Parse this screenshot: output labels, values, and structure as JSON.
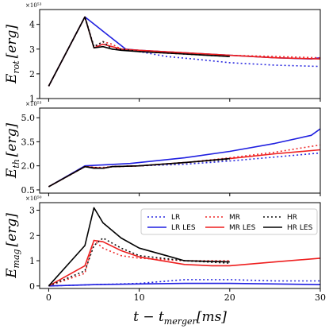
{
  "chart_data": {
    "type": "line",
    "xlabel": "t − t_merger [ms]",
    "xlim": [
      -1,
      30
    ],
    "xticks": [
      0,
      10,
      20,
      30
    ],
    "styles": {
      "LR": {
        "color": "#2a2ae0",
        "dash": "2,3"
      },
      "LR LES": {
        "color": "#1f1fe0",
        "dash": ""
      },
      "MR": {
        "color": "#ee2a2a",
        "dash": "2,3"
      },
      "MR LES": {
        "color": "#ee1f1f",
        "dash": ""
      },
      "HR": {
        "color": "#111111",
        "dash": "2,3"
      },
      "HR LES": {
        "color": "#000000",
        "dash": ""
      }
    },
    "legend": {
      "placement": "upper-right",
      "panel": 2,
      "entries": [
        "LR",
        "MR",
        "HR",
        "LR LES",
        "MR LES",
        "HR LES"
      ]
    },
    "panels": [
      {
        "ylabel": "E_rot [erg]",
        "ylabel_main": "E",
        "ylabel_sub": "rot",
        "ylabel_rest": "[erg]",
        "exponent": "×10⁵³",
        "ylim": [
          1.0,
          4.6
        ],
        "yticks": [
          1,
          2,
          3,
          4
        ],
        "yticklabels": [
          "1",
          "2",
          "3",
          "4"
        ],
        "series": [
          {
            "name": "LR",
            "points": [
              [
                0,
                1.5
              ],
              [
                4,
                4.3
              ],
              [
                5,
                3.1
              ],
              [
                6,
                3.2
              ],
              [
                7,
                3.1
              ],
              [
                8,
                3.0
              ],
              [
                10,
                2.9
              ],
              [
                13,
                2.7
              ],
              [
                16,
                2.6
              ],
              [
                20,
                2.45
              ],
              [
                25,
                2.35
              ],
              [
                30,
                2.3
              ]
            ]
          },
          {
            "name": "LR LES",
            "points": [
              [
                0,
                1.5
              ],
              [
                4,
                4.3
              ],
              [
                8.5,
                3.0
              ],
              [
                10,
                2.95
              ],
              [
                15,
                2.85
              ],
              [
                20,
                2.75
              ],
              [
                25,
                2.65
              ],
              [
                29,
                2.6
              ],
              [
                30,
                2.65
              ]
            ]
          },
          {
            "name": "MR",
            "points": [
              [
                0,
                1.5
              ],
              [
                4,
                4.3
              ],
              [
                5,
                3.1
              ],
              [
                6,
                3.3
              ],
              [
                7,
                3.2
              ],
              [
                8,
                3.0
              ],
              [
                10,
                2.95
              ],
              [
                15,
                2.85
              ],
              [
                20,
                2.75
              ],
              [
                25,
                2.7
              ],
              [
                30,
                2.65
              ]
            ]
          },
          {
            "name": "MR LES",
            "points": [
              [
                0,
                1.5
              ],
              [
                4,
                4.3
              ],
              [
                5,
                3.05
              ],
              [
                6,
                3.2
              ],
              [
                7,
                3.1
              ],
              [
                8,
                3.0
              ],
              [
                10,
                2.95
              ],
              [
                15,
                2.85
              ],
              [
                20,
                2.75
              ],
              [
                25,
                2.65
              ],
              [
                30,
                2.6
              ]
            ]
          },
          {
            "name": "HR",
            "points": [
              [
                0,
                1.5
              ],
              [
                4,
                4.3
              ],
              [
                5,
                3.1
              ],
              [
                6,
                3.3
              ],
              [
                7,
                3.0
              ],
              [
                8,
                3.0
              ],
              [
                10,
                2.9
              ],
              [
                15,
                2.8
              ],
              [
                20,
                2.7
              ]
            ]
          },
          {
            "name": "HR LES",
            "points": [
              [
                0,
                1.5
              ],
              [
                4,
                4.3
              ],
              [
                5,
                3.05
              ],
              [
                6,
                3.1
              ],
              [
                7,
                3.0
              ],
              [
                8,
                2.95
              ],
              [
                10,
                2.9
              ],
              [
                15,
                2.8
              ],
              [
                20,
                2.7
              ]
            ]
          }
        ]
      },
      {
        "ylabel": "E_th [erg]",
        "ylabel_main": "E",
        "ylabel_sub": "th",
        "ylabel_rest": "[erg]",
        "exponent": "×10⁵³",
        "ylim": [
          0.3,
          5.6
        ],
        "yticks": [
          0.5,
          2.0,
          3.5,
          5.0
        ],
        "yticklabels": [
          "0.5",
          "2.0",
          "3.5",
          "5.0"
        ],
        "series": [
          {
            "name": "LR",
            "points": [
              [
                0,
                0.7
              ],
              [
                4,
                1.95
              ],
              [
                5,
                1.9
              ],
              [
                6,
                1.85
              ],
              [
                7,
                1.95
              ],
              [
                10,
                2.0
              ],
              [
                15,
                2.1
              ],
              [
                20,
                2.3
              ],
              [
                25,
                2.55
              ],
              [
                30,
                2.8
              ]
            ]
          },
          {
            "name": "LR LES",
            "points": [
              [
                0,
                0.7
              ],
              [
                4,
                2.0
              ],
              [
                9,
                2.15
              ],
              [
                15,
                2.5
              ],
              [
                20,
                2.9
              ],
              [
                25,
                3.4
              ],
              [
                29,
                3.9
              ],
              [
                30,
                4.3
              ]
            ]
          },
          {
            "name": "MR",
            "points": [
              [
                0,
                0.7
              ],
              [
                4,
                1.95
              ],
              [
                5,
                1.9
              ],
              [
                6,
                1.9
              ],
              [
                7,
                1.95
              ],
              [
                10,
                2.0
              ],
              [
                15,
                2.2
              ],
              [
                20,
                2.5
              ],
              [
                25,
                2.85
              ],
              [
                30,
                3.3
              ]
            ]
          },
          {
            "name": "MR LES",
            "points": [
              [
                0,
                0.7
              ],
              [
                4,
                1.95
              ],
              [
                5,
                1.9
              ],
              [
                6,
                1.85
              ],
              [
                7,
                1.95
              ],
              [
                10,
                2.0
              ],
              [
                15,
                2.2
              ],
              [
                20,
                2.45
              ],
              [
                25,
                2.75
              ],
              [
                30,
                3.0
              ]
            ]
          },
          {
            "name": "HR",
            "points": [
              [
                0,
                0.7
              ],
              [
                4,
                1.95
              ],
              [
                5,
                1.9
              ],
              [
                6,
                1.85
              ],
              [
                7,
                1.95
              ],
              [
                10,
                2.0
              ],
              [
                15,
                2.2
              ],
              [
                20,
                2.4
              ]
            ]
          },
          {
            "name": "HR LES",
            "points": [
              [
                0,
                0.7
              ],
              [
                4,
                1.95
              ],
              [
                5,
                1.85
              ],
              [
                6,
                1.85
              ],
              [
                7,
                1.95
              ],
              [
                10,
                2.0
              ],
              [
                15,
                2.2
              ],
              [
                20,
                2.45
              ]
            ]
          }
        ]
      },
      {
        "ylabel": "E_mag [erg]",
        "ylabel_main": "E",
        "ylabel_sub": "mag",
        "ylabel_rest": "[erg]",
        "exponent": "×10⁵⁰",
        "ylim": [
          -0.1,
          3.3
        ],
        "yticks": [
          0,
          1,
          2,
          3
        ],
        "yticklabels": [
          "0",
          "1",
          "2",
          "3"
        ],
        "series": [
          {
            "name": "LR",
            "points": [
              [
                0,
                0
              ],
              [
                5,
                0.05
              ],
              [
                10,
                0.1
              ],
              [
                15,
                0.25
              ],
              [
                20,
                0.25
              ],
              [
                25,
                0.2
              ],
              [
                30,
                0.2
              ]
            ]
          },
          {
            "name": "LR LES",
            "points": [
              [
                0,
                0
              ],
              [
                5,
                0.05
              ],
              [
                10,
                0.08
              ],
              [
                15,
                0.1
              ],
              [
                20,
                0.1
              ],
              [
                25,
                0.08
              ],
              [
                30,
                0.05
              ]
            ]
          },
          {
            "name": "MR",
            "points": [
              [
                0,
                0
              ],
              [
                4,
                0.5
              ],
              [
                5,
                1.8
              ],
              [
                6,
                1.5
              ],
              [
                8,
                1.2
              ],
              [
                10,
                1.1
              ],
              [
                15,
                1.0
              ],
              [
                20,
                1.0
              ]
            ]
          },
          {
            "name": "MR LES",
            "points": [
              [
                0,
                0
              ],
              [
                4,
                0.8
              ],
              [
                5,
                1.8
              ],
              [
                6,
                1.75
              ],
              [
                8,
                1.4
              ],
              [
                10,
                1.15
              ],
              [
                15,
                0.85
              ],
              [
                18,
                0.8
              ],
              [
                20,
                0.8
              ],
              [
                25,
                0.95
              ],
              [
                30,
                1.1
              ]
            ]
          },
          {
            "name": "HR",
            "points": [
              [
                0,
                0
              ],
              [
                4,
                0.6
              ],
              [
                5,
                1.6
              ],
              [
                6,
                1.9
              ],
              [
                8,
                1.5
              ],
              [
                10,
                1.2
              ],
              [
                15,
                1.0
              ],
              [
                20,
                0.9
              ]
            ]
          },
          {
            "name": "HR LES",
            "points": [
              [
                0,
                0
              ],
              [
                4,
                1.6
              ],
              [
                5,
                3.1
              ],
              [
                6,
                2.5
              ],
              [
                8,
                1.9
              ],
              [
                10,
                1.5
              ],
              [
                13,
                1.2
              ],
              [
                15,
                1.0
              ],
              [
                20,
                0.95
              ]
            ]
          }
        ]
      }
    ]
  }
}
